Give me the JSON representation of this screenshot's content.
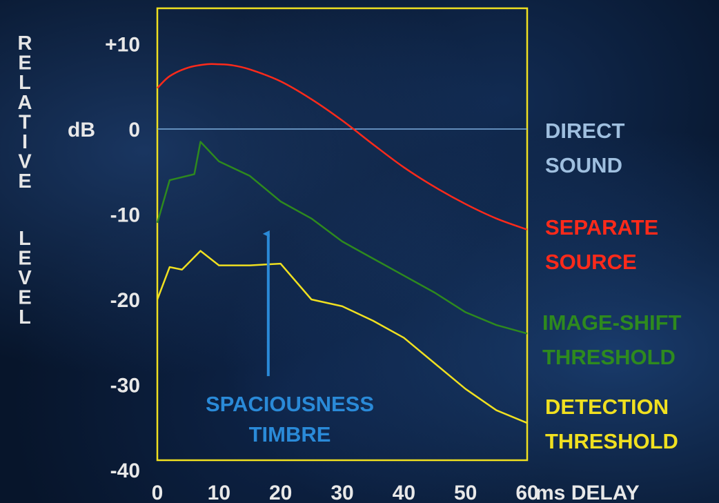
{
  "chart_data": {
    "type": "line",
    "title": "",
    "ylabel": "RELATIVE LEVEL",
    "yunit": "dB",
    "xlabel": "ms DELAY",
    "xlim": [
      0,
      60
    ],
    "ylim": [
      -40,
      15
    ],
    "x_ticks": [
      0,
      10,
      20,
      30,
      40,
      50,
      60
    ],
    "x_tick_labels": [
      "0",
      "10",
      "20",
      "30",
      "40",
      "50",
      "60"
    ],
    "y_ticks": [
      10,
      0,
      -10,
      -20,
      -30,
      -40
    ],
    "y_tick_labels": [
      "+10",
      "0",
      "-10",
      "-20",
      "-30",
      "-40"
    ],
    "colors": {
      "direct": "#7fb0e0",
      "separate": "#ff2a1a",
      "image_shift": "#2e8a1e",
      "detection": "#f0e020",
      "frame": "#f0e020",
      "annotation": "#2a8ad8"
    },
    "series": [
      {
        "name": "DIRECT SOUND",
        "name_lines": [
          "DIRECT",
          "SOUND"
        ],
        "color": "#9fbfdf",
        "line_color": "#7fb0e0",
        "x": [
          0,
          60
        ],
        "y": [
          0,
          0
        ]
      },
      {
        "name": "SEPARATE SOURCE",
        "name_lines": [
          "SEPARATE",
          "SOURCE"
        ],
        "color": "#ff2a1a",
        "line_color": "#ff2a1a",
        "x": [
          0,
          2,
          5,
          8,
          10,
          12,
          15,
          20,
          25,
          30,
          35,
          40,
          45,
          50,
          55,
          60
        ],
        "y": [
          4.8,
          6.2,
          7.2,
          7.6,
          7.6,
          7.5,
          7.0,
          5.6,
          3.5,
          1.0,
          -1.8,
          -4.5,
          -6.8,
          -8.8,
          -10.5,
          -11.8
        ]
      },
      {
        "name": "IMAGE-SHIFT THRESHOLD",
        "name_lines": [
          "IMAGE-SHIFT",
          "THRESHOLD"
        ],
        "color": "#2e8a1e",
        "line_color": "#2e8a1e",
        "x": [
          0,
          2,
          6,
          7,
          10,
          15,
          20,
          25,
          30,
          35,
          40,
          45,
          50,
          55,
          60
        ],
        "y": [
          -11,
          -6,
          -5.3,
          -1.5,
          -3.8,
          -5.5,
          -8.5,
          -10.5,
          -13.2,
          -15.2,
          -17.2,
          -19.2,
          -21.5,
          -23.0,
          -24.0
        ]
      },
      {
        "name": "DETECTION THRESHOLD",
        "name_lines": [
          "DETECTION",
          "THRESHOLD"
        ],
        "color": "#f0e020",
        "line_color": "#f0e020",
        "x": [
          0,
          2,
          4,
          7,
          10,
          15,
          20,
          25,
          30,
          35,
          40,
          45,
          50,
          55,
          60
        ],
        "y": [
          -20,
          -16.2,
          -16.5,
          -14.3,
          -16.0,
          -16.0,
          -15.8,
          -20.0,
          -20.8,
          -22.5,
          -24.5,
          -27.5,
          -30.5,
          -33.0,
          -34.5
        ]
      }
    ],
    "annotations": [
      {
        "text_lines": [
          "SPACIOUSNESS",
          "TIMBRE"
        ],
        "arrow_x": 18,
        "arrow_y_from": -29,
        "arrow_y_to": -12.3,
        "color": "#2a8ad8"
      }
    ]
  }
}
